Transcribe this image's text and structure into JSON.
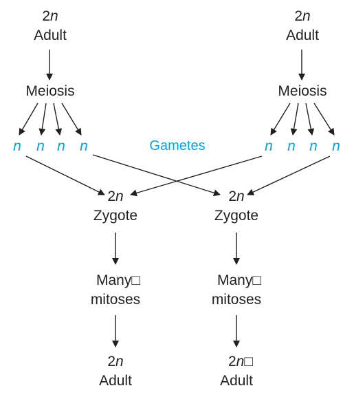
{
  "left_parent": {
    "ploidy_num": "2",
    "ploidy_var": "n",
    "label": "Adult"
  },
  "right_parent": {
    "ploidy_num": "2",
    "ploidy_var": "n",
    "label": "Adult"
  },
  "left_meiosis": "Meiosis",
  "right_meiosis": "Meiosis",
  "left_gametes": [
    "n",
    "n",
    "n",
    "n"
  ],
  "right_gametes": [
    "n",
    "n",
    "n",
    "n"
  ],
  "gametes_label": "Gametes",
  "left_zygote": {
    "ploidy_num": "2",
    "ploidy_var": "n",
    "label": "Zygote"
  },
  "right_zygote": {
    "ploidy_num": "2",
    "ploidy_var": "n",
    "label": "Zygote"
  },
  "left_mitoses": {
    "line1": "Many□",
    "line2": "mitoses"
  },
  "right_mitoses": {
    "line1": "Many□",
    "line2": "mitoses"
  },
  "left_offspring": {
    "ploidy_num": "2",
    "ploidy_var": "n",
    "suffix": "",
    "label": "Adult"
  },
  "right_offspring": {
    "ploidy_num": "2",
    "ploidy_var": "n",
    "suffix": "□",
    "label": "Adult"
  },
  "colors": {
    "text": "#231f20",
    "gamete": "#00a6e0",
    "arrow": "#231f20"
  }
}
